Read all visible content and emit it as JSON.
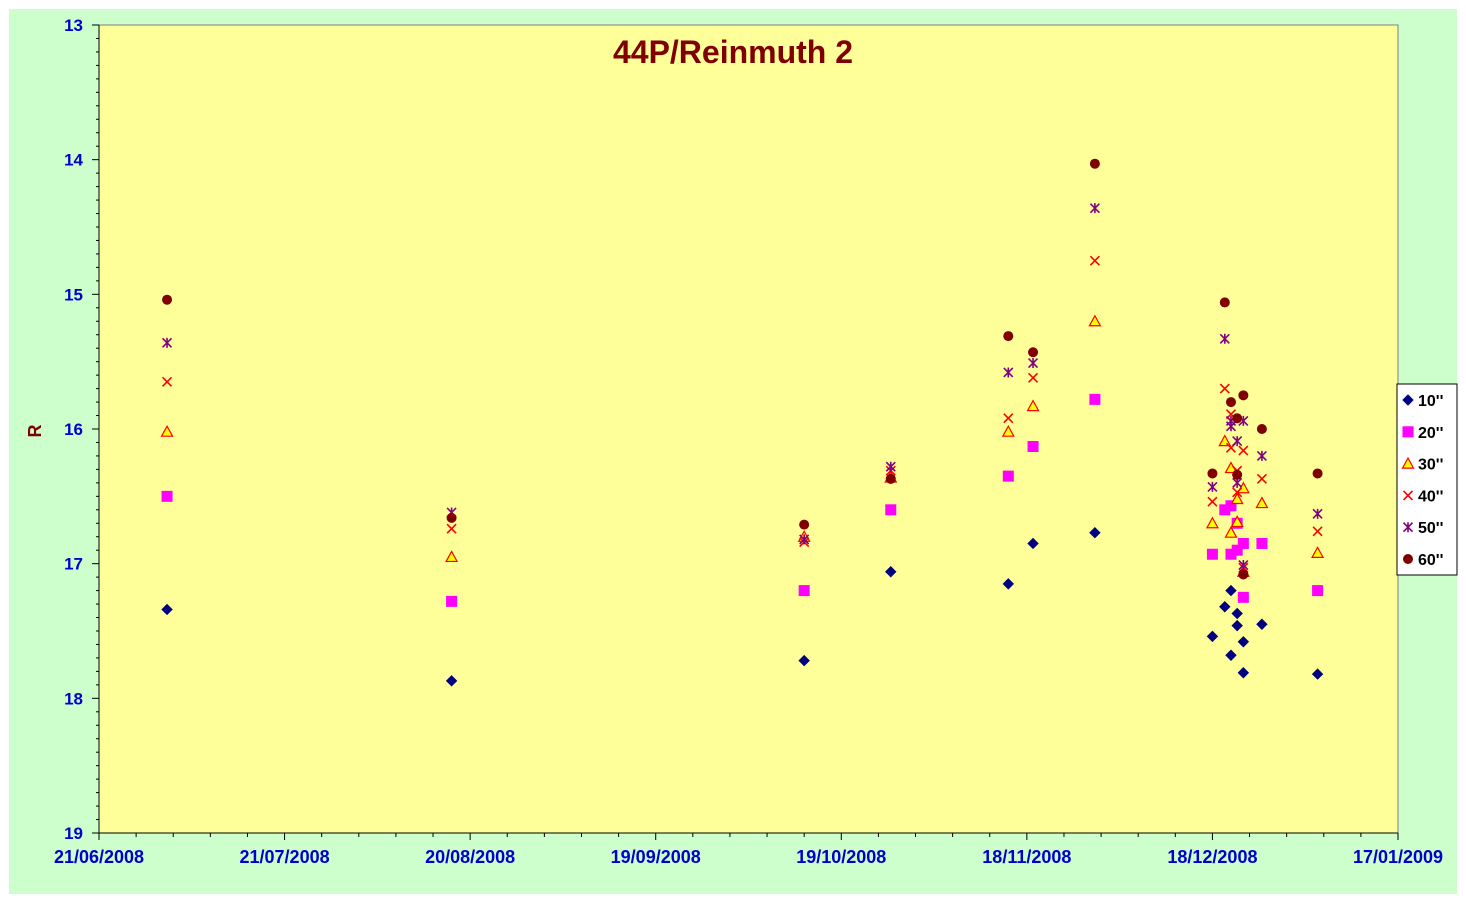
{
  "chart_data": {
    "type": "scatter",
    "title": "44P/Reinmuth 2",
    "xlabel": "",
    "ylabel": "R",
    "x_is_date": true,
    "xlim": [
      "2008-06-21",
      "2009-01-17"
    ],
    "ylim": [
      19,
      13
    ],
    "y_inverted": true,
    "x_ticks": [
      "2008-06-21",
      "2008-07-21",
      "2008-08-20",
      "2008-09-19",
      "2008-10-19",
      "2008-11-18",
      "2008-12-18",
      "2009-01-17"
    ],
    "x_tick_labels": [
      "21/06/2008",
      "21/07/2008",
      "20/08/2008",
      "19/09/2008",
      "19/10/2008",
      "18/11/2008",
      "18/12/2008",
      "17/01/2009"
    ],
    "y_ticks": [
      13,
      14,
      15,
      16,
      17,
      18,
      19
    ],
    "y_tick_labels": [
      "13",
      "14",
      "15",
      "16",
      "17",
      "18",
      "19"
    ],
    "grid": false,
    "legend_position": "right",
    "background_color": "#ffff99",
    "outer_background_color": "#ccffcc",
    "series": [
      {
        "name": "10''",
        "marker": "diamond",
        "color": "#000080",
        "points": [
          [
            "2008-07-02",
            17.34
          ],
          [
            "2008-08-17",
            17.87
          ],
          [
            "2008-10-13",
            17.72
          ],
          [
            "2008-10-27",
            17.06
          ],
          [
            "2008-11-15",
            17.15
          ],
          [
            "2008-11-19",
            16.85
          ],
          [
            "2008-11-29",
            16.77
          ],
          [
            "2008-12-18",
            17.54
          ],
          [
            "2008-12-20",
            17.32
          ],
          [
            "2008-12-21",
            17.68
          ],
          [
            "2008-12-21",
            17.2
          ],
          [
            "2008-12-22",
            17.46
          ],
          [
            "2008-12-22",
            17.37
          ],
          [
            "2008-12-23",
            17.58
          ],
          [
            "2008-12-23",
            17.81
          ],
          [
            "2008-12-26",
            17.45
          ],
          [
            "2009-01-04",
            17.82
          ]
        ]
      },
      {
        "name": "20''",
        "marker": "square",
        "color": "#ff00ff",
        "points": [
          [
            "2008-07-02",
            16.5
          ],
          [
            "2008-08-17",
            17.28
          ],
          [
            "2008-10-13",
            17.2
          ],
          [
            "2008-10-27",
            16.6
          ],
          [
            "2008-11-15",
            16.35
          ],
          [
            "2008-11-19",
            16.13
          ],
          [
            "2008-11-29",
            15.78
          ],
          [
            "2008-12-18",
            16.93
          ],
          [
            "2008-12-20",
            16.6
          ],
          [
            "2008-12-21",
            16.93
          ],
          [
            "2008-12-21",
            16.57
          ],
          [
            "2008-12-22",
            16.9
          ],
          [
            "2008-12-22",
            16.7
          ],
          [
            "2008-12-23",
            16.85
          ],
          [
            "2008-12-23",
            17.25
          ],
          [
            "2008-12-26",
            16.85
          ],
          [
            "2009-01-04",
            17.2
          ]
        ]
      },
      {
        "name": "30''",
        "marker": "triangle",
        "color": "#ff0000",
        "fill": "#ffff00",
        "points": [
          [
            "2008-07-02",
            16.02
          ],
          [
            "2008-08-17",
            16.95
          ],
          [
            "2008-10-13",
            16.8
          ],
          [
            "2008-10-27",
            16.36
          ],
          [
            "2008-11-15",
            16.02
          ],
          [
            "2008-11-19",
            15.83
          ],
          [
            "2008-11-29",
            15.2
          ],
          [
            "2008-12-18",
            16.7
          ],
          [
            "2008-12-20",
            16.09
          ],
          [
            "2008-12-21",
            16.77
          ],
          [
            "2008-12-21",
            16.29
          ],
          [
            "2008-12-22",
            16.69
          ],
          [
            "2008-12-22",
            16.52
          ],
          [
            "2008-12-23",
            16.44
          ],
          [
            "2008-12-23",
            17.06
          ],
          [
            "2008-12-26",
            16.55
          ],
          [
            "2009-01-04",
            16.92
          ]
        ]
      },
      {
        "name": "40''",
        "marker": "x",
        "color": "#ff0000",
        "points": [
          [
            "2008-07-02",
            15.65
          ],
          [
            "2008-08-17",
            16.74
          ],
          [
            "2008-10-13",
            16.84
          ],
          [
            "2008-10-27",
            16.31
          ],
          [
            "2008-11-15",
            15.92
          ],
          [
            "2008-11-19",
            15.62
          ],
          [
            "2008-11-29",
            14.75
          ],
          [
            "2008-12-18",
            16.54
          ],
          [
            "2008-12-20",
            15.7
          ],
          [
            "2008-12-21",
            16.14
          ],
          [
            "2008-12-21",
            15.89
          ],
          [
            "2008-12-22",
            16.47
          ],
          [
            "2008-12-22",
            16.31
          ],
          [
            "2008-12-23",
            16.16
          ],
          [
            "2008-12-23",
            17.03
          ],
          [
            "2008-12-26",
            16.37
          ],
          [
            "2009-01-04",
            16.76
          ]
        ]
      },
      {
        "name": "50''",
        "marker": "star",
        "color": "#800080",
        "points": [
          [
            "2008-07-02",
            15.36
          ],
          [
            "2008-08-17",
            16.62
          ],
          [
            "2008-10-13",
            16.82
          ],
          [
            "2008-10-27",
            16.28
          ],
          [
            "2008-11-15",
            15.58
          ],
          [
            "2008-11-19",
            15.51
          ],
          [
            "2008-11-29",
            14.36
          ],
          [
            "2008-12-18",
            16.43
          ],
          [
            "2008-12-20",
            15.33
          ],
          [
            "2008-12-21",
            15.98
          ],
          [
            "2008-12-21",
            15.94
          ],
          [
            "2008-12-22",
            16.4
          ],
          [
            "2008-12-22",
            16.09
          ],
          [
            "2008-12-23",
            15.94
          ],
          [
            "2008-12-23",
            17.01
          ],
          [
            "2008-12-26",
            16.2
          ],
          [
            "2009-01-04",
            16.63
          ]
        ]
      },
      {
        "name": "60''",
        "marker": "circle",
        "color": "#800000",
        "points": [
          [
            "2008-07-02",
            15.04
          ],
          [
            "2008-08-17",
            16.66
          ],
          [
            "2008-10-13",
            16.71
          ],
          [
            "2008-10-27",
            16.37
          ],
          [
            "2008-11-15",
            15.31
          ],
          [
            "2008-11-19",
            15.43
          ],
          [
            "2008-11-29",
            14.03
          ],
          [
            "2008-12-18",
            16.33
          ],
          [
            "2008-12-20",
            15.06
          ],
          [
            "2008-12-21",
            15.8
          ],
          [
            "2008-12-22",
            15.92
          ],
          [
            "2008-12-22",
            16.34
          ],
          [
            "2008-12-23",
            15.75
          ],
          [
            "2008-12-23",
            17.08
          ],
          [
            "2008-12-26",
            16.0
          ],
          [
            "2009-01-04",
            16.33
          ]
        ]
      }
    ]
  }
}
